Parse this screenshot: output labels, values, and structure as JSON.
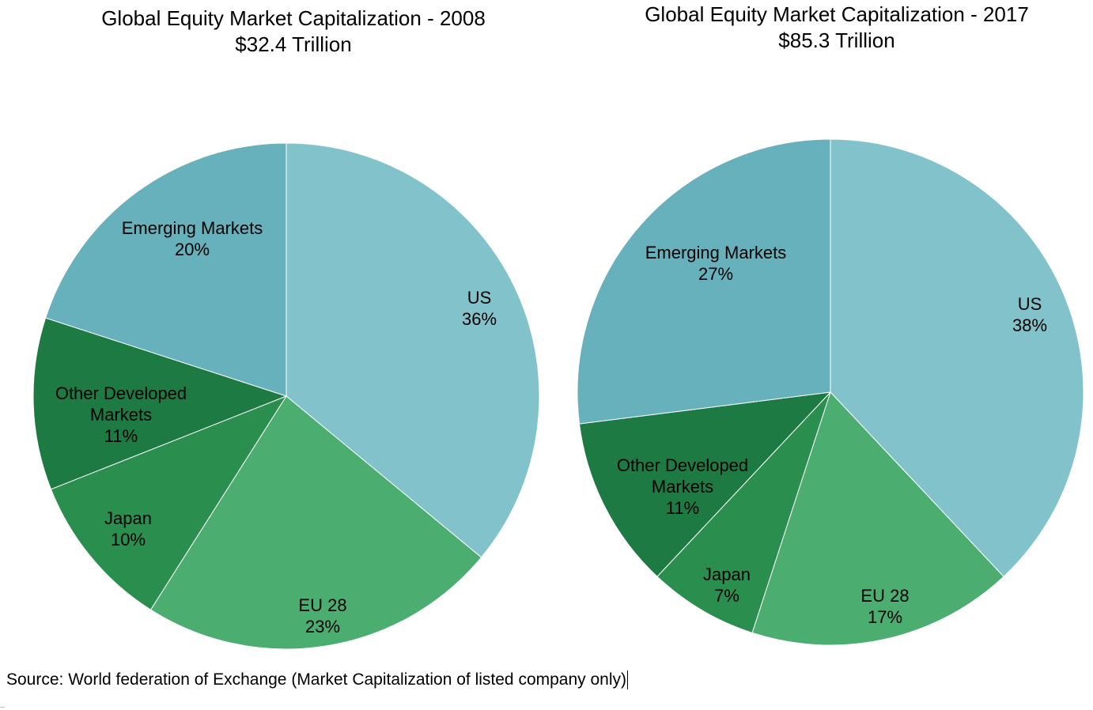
{
  "chart_data": [
    {
      "type": "pie",
      "title": "Global Equity Market Capitalization  - 2008",
      "subtitle": "$32.4  Trillion",
      "slices": [
        {
          "name": "US",
          "value": 36,
          "label": "36%",
          "color": "#82c3cb"
        },
        {
          "name": "EU 28",
          "value": 23,
          "label": "23%",
          "color": "#4bad70"
        },
        {
          "name": "Japan",
          "value": 10,
          "label": "10%",
          "color": "#2a8f4e"
        },
        {
          "name": "Other Developed Markets",
          "label_lines": [
            "Other Developed",
            "Markets"
          ],
          "value": 11,
          "label": "11%",
          "color": "#1c7a42"
        },
        {
          "name": "Emerging  Markets",
          "value": 20,
          "label": "20%",
          "color": "#66b1bb"
        }
      ]
    },
    {
      "type": "pie",
      "title": "Global Equity Market Capitalization  - 2017",
      "subtitle": "$85.3  Trillion",
      "slices": [
        {
          "name": "US",
          "value": 38,
          "label": "38%",
          "color": "#82c3cb"
        },
        {
          "name": "EU 28",
          "value": 17,
          "label": "17%",
          "color": "#4bad70"
        },
        {
          "name": "Japan",
          "value": 7,
          "label": "7%",
          "color": "#2a8f4e"
        },
        {
          "name": "Other Developed Markets",
          "label_lines": [
            "Other Developed",
            "Markets"
          ],
          "value": 11,
          "label": "11%",
          "color": "#1c7a42"
        },
        {
          "name": "Emerging  Markets",
          "value": 27,
          "label": "27%",
          "color": "#66b1bb"
        }
      ]
    }
  ],
  "footer": {
    "source": "Source: World federation of Exchange (Market Capitalization of listed company only)"
  }
}
